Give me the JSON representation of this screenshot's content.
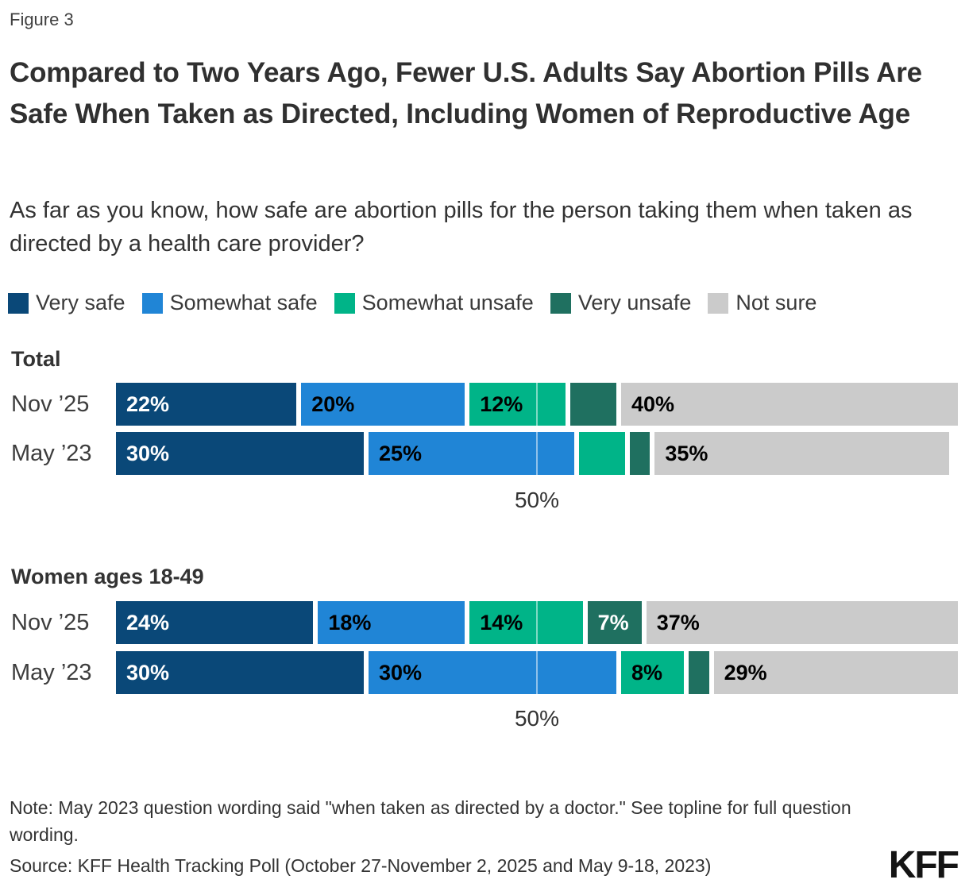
{
  "figure_label": "Figure 3",
  "title": "Compared to Two Years Ago, Fewer U.S. Adults Say Abortion Pills Are Safe When Taken as Directed, Including Women of Reproductive Age",
  "subtitle": "As far as you know, how safe are abortion pills for the person taking them when taken as directed by a health care provider?",
  "legend": [
    {
      "key": "very_safe",
      "label": "Very safe"
    },
    {
      "key": "somewhat_safe",
      "label": "Somewhat safe"
    },
    {
      "key": "somewhat_unsafe",
      "label": "Somewhat unsafe"
    },
    {
      "key": "very_unsafe",
      "label": "Very unsafe"
    },
    {
      "key": "not_sure",
      "label": "Not sure"
    }
  ],
  "colors": {
    "very_safe": "#0a4878",
    "somewhat_safe": "#2085d6",
    "somewhat_unsafe": "#00b488",
    "very_unsafe": "#1f7060",
    "not_sure": "#cbcbcb"
  },
  "label_colors": {
    "very_safe": "#ffffff",
    "somewhat_safe": "#000000",
    "somewhat_unsafe": "#000000",
    "very_unsafe": "#ffffff",
    "not_sure": "#000000"
  },
  "chart_data": {
    "type": "bar",
    "orientation": "horizontal-stacked",
    "categories": [
      "Very safe",
      "Somewhat safe",
      "Somewhat unsafe",
      "Very unsafe",
      "Not sure"
    ],
    "xlim": [
      0,
      100
    ],
    "gridline_at": 50,
    "axis_tick_label": "50%",
    "groups": [
      {
        "name": "Total",
        "rows": [
          {
            "label": "Nov ’25",
            "values": [
              22,
              20,
              12,
              6,
              40
            ],
            "display": [
              "22%",
              "20%",
              "12%",
              "",
              "40%"
            ]
          },
          {
            "label": "May ’23",
            "values": [
              30,
              25,
              6,
              3,
              35
            ],
            "display": [
              "30%",
              "25%",
              "",
              "",
              "35%"
            ]
          }
        ]
      },
      {
        "name": "Women ages 18-49",
        "rows": [
          {
            "label": "Nov ’25",
            "values": [
              24,
              18,
              14,
              7,
              37
            ],
            "display": [
              "24%",
              "18%",
              "14%",
              "7%",
              "37%"
            ]
          },
          {
            "label": "May ’23",
            "values": [
              30,
              30,
              8,
              3,
              29
            ],
            "display": [
              "30%",
              "30%",
              "8%",
              "",
              "29%"
            ]
          }
        ]
      }
    ]
  },
  "note": "Note: May 2023 question wording said \"when taken as directed by a doctor.\" See topline for full question wording.",
  "source": "Source: KFF Health Tracking Poll (October 27-November 2, 2025 and May 9-18, 2023)",
  "logo": "KFF"
}
